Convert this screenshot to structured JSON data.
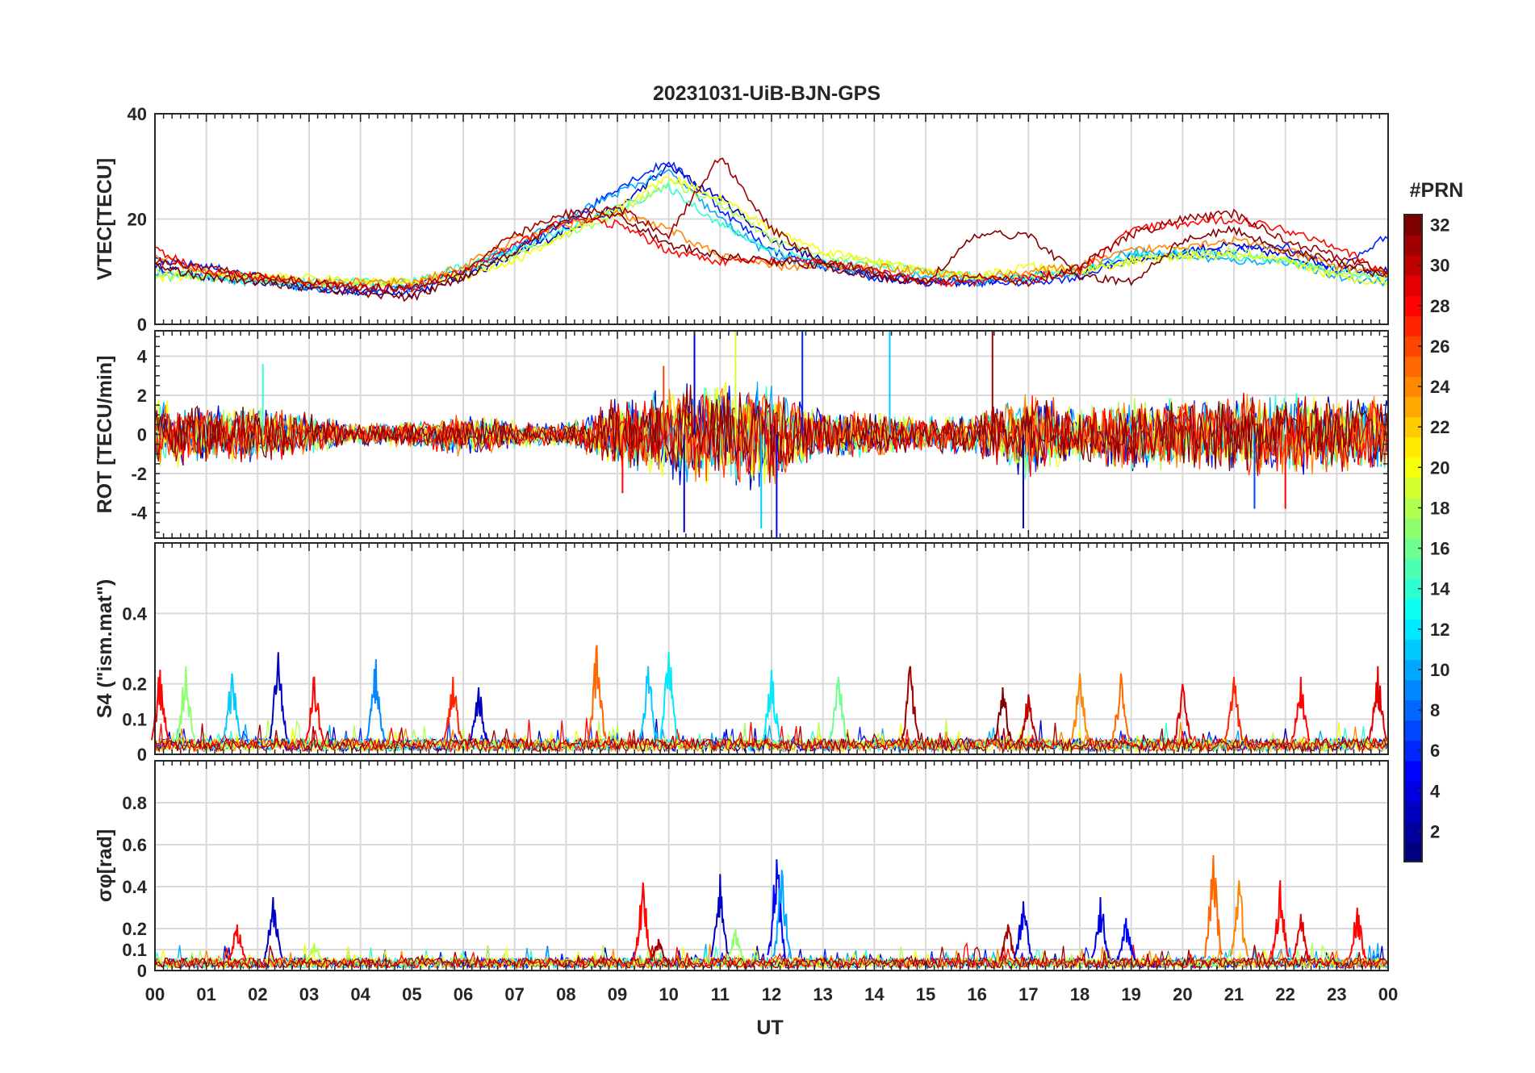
{
  "figure": {
    "title": "20231031-UiB-BJN-GPS",
    "xlabel": "UT",
    "x_tick_labels": [
      "00",
      "01",
      "02",
      "03",
      "04",
      "05",
      "06",
      "07",
      "08",
      "09",
      "10",
      "11",
      "12",
      "13",
      "14",
      "15",
      "16",
      "17",
      "18",
      "19",
      "20",
      "21",
      "22",
      "23",
      "00"
    ]
  },
  "colorbar": {
    "title": "#PRN",
    "tick_labels": [
      "2",
      "4",
      "6",
      "8",
      "10",
      "12",
      "14",
      "16",
      "18",
      "20",
      "22",
      "24",
      "26",
      "28",
      "30",
      "32"
    ],
    "range": [
      1,
      32
    ],
    "colormap": "jet",
    "levels": 32
  },
  "chart_data": [
    {
      "type": "line",
      "ylabel": "VTEC[TECU]",
      "ylim": [
        0,
        40
      ],
      "yticks": [
        0,
        20,
        40
      ],
      "xlim_hours": [
        0,
        24
      ],
      "grid": true,
      "x_hours": [
        0,
        1,
        2,
        3,
        4,
        5,
        6,
        7,
        8,
        9,
        10,
        11,
        12,
        13,
        14,
        15,
        16,
        17,
        18,
        19,
        20,
        21,
        22,
        23,
        24
      ],
      "series": [
        {
          "prn": 3,
          "values": [
            11,
            9,
            8,
            7,
            6,
            6,
            9,
            13,
            18,
            22,
            30,
            24,
            16,
            12,
            9,
            8,
            8,
            9,
            10,
            12,
            14,
            15,
            13,
            11,
            10
          ]
        },
        {
          "prn": 6,
          "values": [
            12,
            11,
            9,
            7,
            6,
            7,
            10,
            14,
            19,
            26,
            31,
            22,
            14,
            11,
            9,
            8,
            8,
            8,
            9,
            13,
            13,
            14,
            15,
            10,
            17
          ]
        },
        {
          "prn": 10,
          "values": [
            10,
            9,
            8,
            7,
            7,
            7,
            10,
            15,
            20,
            25,
            29,
            20,
            13,
            11,
            10,
            9,
            8,
            9,
            10,
            14,
            13,
            12,
            12,
            9,
            8
          ]
        },
        {
          "prn": 14,
          "values": [
            9,
            9,
            8,
            8,
            8,
            8,
            11,
            14,
            18,
            22,
            26,
            19,
            14,
            12,
            11,
            10,
            9,
            9,
            10,
            13,
            14,
            13,
            12,
            10,
            9
          ]
        },
        {
          "prn": 18,
          "values": [
            10,
            10,
            9,
            8,
            8,
            8,
            10,
            13,
            17,
            21,
            27,
            23,
            16,
            13,
            12,
            10,
            9,
            9,
            10,
            12,
            13,
            14,
            12,
            10,
            9
          ]
        },
        {
          "prn": 20,
          "values": [
            9,
            9,
            9,
            9,
            8,
            8,
            9,
            12,
            17,
            22,
            28,
            24,
            18,
            14,
            12,
            10,
            9,
            11,
            10,
            12,
            13,
            13,
            12,
            9,
            8
          ]
        },
        {
          "prn": 24,
          "values": [
            13,
            10,
            9,
            8,
            8,
            8,
            11,
            16,
            19,
            21,
            18,
            13,
            11,
            11,
            11,
            10,
            9,
            10,
            11,
            14,
            15,
            16,
            14,
            11,
            10
          ]
        },
        {
          "prn": 28,
          "values": [
            14,
            10,
            9,
            8,
            7,
            7,
            10,
            15,
            20,
            19,
            14,
            12,
            12,
            12,
            10,
            8,
            8,
            9,
            10,
            18,
            19,
            20,
            18,
            15,
            9
          ]
        },
        {
          "prn": 31,
          "values": [
            12,
            11,
            9,
            8,
            7,
            7,
            10,
            17,
            21,
            22,
            17,
            32,
            18,
            12,
            10,
            8,
            9,
            8,
            11,
            17,
            20,
            21,
            16,
            13,
            10
          ]
        },
        {
          "prn": 32,
          "values": [
            11,
            9,
            8,
            7,
            6,
            5,
            9,
            14,
            20,
            21,
            15,
            13,
            12,
            11,
            9,
            8,
            17,
            17,
            9,
            8,
            16,
            18,
            14,
            12,
            9
          ]
        }
      ]
    },
    {
      "type": "line",
      "ylabel": "ROT [TECU/min]",
      "ylim": [
        -5.3,
        5.3
      ],
      "yticks": [
        -4,
        -2,
        0,
        2,
        4
      ],
      "xlim_hours": [
        0,
        24
      ],
      "grid": true,
      "x_hours": [
        0,
        1,
        2,
        3,
        4,
        5,
        6,
        7,
        8,
        9,
        10,
        11,
        12,
        13,
        14,
        15,
        16,
        17,
        18,
        19,
        20,
        21,
        22,
        23,
        24
      ],
      "activity_envelope": [
        2.0,
        1.5,
        1.6,
        1.2,
        0.6,
        0.7,
        1.2,
        0.8,
        0.6,
        2.0,
        2.6,
        3.0,
        2.8,
        1.3,
        1.3,
        1.0,
        1.2,
        2.4,
        1.5,
        2.0,
        2.0,
        2.2,
        2.3,
        2.2,
        2.0
      ],
      "spikes": [
        {
          "x": 2.1,
          "y": 3.6,
          "prn": 14
        },
        {
          "x": 9.1,
          "y": -3.0,
          "prn": 28
        },
        {
          "x": 9.9,
          "y": 3.5,
          "prn": 26
        },
        {
          "x": 10.3,
          "y": -5.0,
          "prn": 3
        },
        {
          "x": 10.5,
          "y": 5.3,
          "prn": 3
        },
        {
          "x": 11.3,
          "y": 5.3,
          "prn": 19
        },
        {
          "x": 11.8,
          "y": -4.8,
          "prn": 11
        },
        {
          "x": 12.1,
          "y": -5.3,
          "prn": 5
        },
        {
          "x": 12.6,
          "y": 5.3,
          "prn": 6
        },
        {
          "x": 14.3,
          "y": 5.3,
          "prn": 11
        },
        {
          "x": 16.3,
          "y": 5.3,
          "prn": 31
        },
        {
          "x": 16.9,
          "y": -4.8,
          "prn": 3
        },
        {
          "x": 21.4,
          "y": -3.8,
          "prn": 7
        },
        {
          "x": 22.0,
          "y": -3.8,
          "prn": 28
        }
      ]
    },
    {
      "type": "line",
      "ylabel": "S4 (\"ism.mat\")",
      "ylim": [
        0,
        0.6
      ],
      "yticks": [
        0,
        0.1,
        0.2,
        0.4
      ],
      "xlim_hours": [
        0,
        24
      ],
      "grid": true,
      "baseline": 0.03,
      "bursts": [
        {
          "x": 0.1,
          "y": 0.24,
          "prn": 28
        },
        {
          "x": 0.6,
          "y": 0.25,
          "prn": 17
        },
        {
          "x": 1.5,
          "y": 0.23,
          "prn": 11
        },
        {
          "x": 2.4,
          "y": 0.29,
          "prn": 3
        },
        {
          "x": 3.1,
          "y": 0.22,
          "prn": 28
        },
        {
          "x": 4.3,
          "y": 0.27,
          "prn": 9
        },
        {
          "x": 5.8,
          "y": 0.22,
          "prn": 27
        },
        {
          "x": 6.3,
          "y": 0.19,
          "prn": 3
        },
        {
          "x": 8.6,
          "y": 0.31,
          "prn": 25
        },
        {
          "x": 9.6,
          "y": 0.25,
          "prn": 11
        },
        {
          "x": 10.0,
          "y": 0.29,
          "prn": 12
        },
        {
          "x": 12.0,
          "y": 0.24,
          "prn": 12
        },
        {
          "x": 13.3,
          "y": 0.22,
          "prn": 16
        },
        {
          "x": 14.7,
          "y": 0.25,
          "prn": 31
        },
        {
          "x": 16.5,
          "y": 0.19,
          "prn": 32
        },
        {
          "x": 17.0,
          "y": 0.17,
          "prn": 30
        },
        {
          "x": 18.0,
          "y": 0.23,
          "prn": 24
        },
        {
          "x": 18.8,
          "y": 0.23,
          "prn": 25
        },
        {
          "x": 20.0,
          "y": 0.2,
          "prn": 29
        },
        {
          "x": 21.0,
          "y": 0.22,
          "prn": 27
        },
        {
          "x": 22.3,
          "y": 0.22,
          "prn": 28
        },
        {
          "x": 23.8,
          "y": 0.25,
          "prn": 29
        }
      ]
    },
    {
      "type": "line",
      "ylabel": "σφ[rad]",
      "ylim": [
        0,
        1
      ],
      "yticks": [
        0,
        0.1,
        0.2,
        0.4,
        0.6,
        0.8
      ],
      "xlim_hours": [
        0,
        24
      ],
      "grid": true,
      "baseline": 0.04,
      "bursts": [
        {
          "x": 1.6,
          "y": 0.22,
          "prn": 28
        },
        {
          "x": 2.3,
          "y": 0.35,
          "prn": 3
        },
        {
          "x": 3.1,
          "y": 0.13,
          "prn": 18
        },
        {
          "x": 9.5,
          "y": 0.42,
          "prn": 28
        },
        {
          "x": 9.8,
          "y": 0.15,
          "prn": 31
        },
        {
          "x": 11.0,
          "y": 0.46,
          "prn": 3
        },
        {
          "x": 11.3,
          "y": 0.2,
          "prn": 17
        },
        {
          "x": 12.1,
          "y": 0.53,
          "prn": 5
        },
        {
          "x": 12.2,
          "y": 0.48,
          "prn": 10
        },
        {
          "x": 16.6,
          "y": 0.22,
          "prn": 31
        },
        {
          "x": 16.9,
          "y": 0.33,
          "prn": 4
        },
        {
          "x": 18.4,
          "y": 0.35,
          "prn": 4
        },
        {
          "x": 18.9,
          "y": 0.25,
          "prn": 5
        },
        {
          "x": 20.6,
          "y": 0.55,
          "prn": 25
        },
        {
          "x": 21.1,
          "y": 0.43,
          "prn": 24
        },
        {
          "x": 21.9,
          "y": 0.43,
          "prn": 28
        },
        {
          "x": 22.3,
          "y": 0.27,
          "prn": 29
        },
        {
          "x": 23.4,
          "y": 0.3,
          "prn": 28
        }
      ]
    }
  ]
}
